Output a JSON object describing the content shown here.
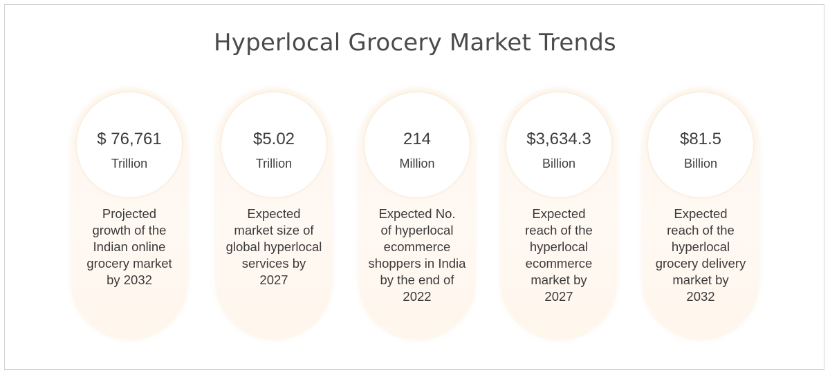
{
  "title": "Hyperlocal Grocery Market Trends",
  "cards": [
    {
      "value": "$ 76,761",
      "unit": "Trillion",
      "description_lines": [
        "Projected",
        "growth of the",
        "Indian online",
        "grocery market",
        "by 2032"
      ]
    },
    {
      "value": "$5.02",
      "unit": "Trillion",
      "description_lines": [
        "Expected",
        "market size of",
        "global hyperlocal",
        "services by",
        "2027"
      ]
    },
    {
      "value": "214",
      "unit": "Million",
      "description_lines": [
        "Expected No.",
        "of hyperlocal",
        "ecommerce",
        "shoppers in India",
        "by the end of",
        "2022"
      ]
    },
    {
      "value": "$3,634.3",
      "unit": "Billion",
      "description_lines": [
        "Expected",
        "reach of the",
        "hyperlocal",
        "ecommerce",
        "market by",
        "2027"
      ]
    },
    {
      "value": "$81.5",
      "unit": "Billion",
      "description_lines": [
        "Expected",
        "reach of the",
        "hyperlocal",
        "grocery delivery",
        "market by",
        "2032"
      ]
    }
  ],
  "colors": {
    "card_fill": "#fef7ef",
    "text": "#3d3d3d",
    "border": "#d3d3d3"
  }
}
